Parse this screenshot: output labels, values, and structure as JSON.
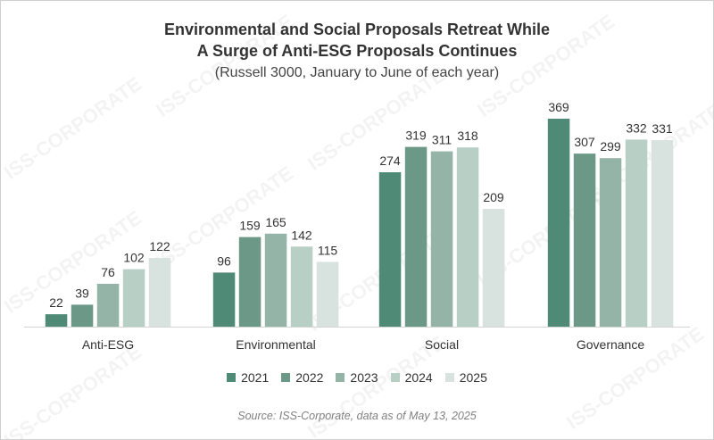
{
  "title_line1": "Environmental and Social Proposals Retreat While",
  "title_line2": "A Surge of Anti-ESG Proposals Continues",
  "subtitle": "(Russell 3000, January to June of each year)",
  "source": "Source: ISS-Corporate, data as of May 13, 2025",
  "watermark": "ISS-CORPORATE",
  "colors": [
    "#4e8a76",
    "#6c9887",
    "#93b4a6",
    "#b8cfc6",
    "#d8e2de"
  ],
  "chart_data": {
    "type": "bar",
    "title": "Environmental and Social Proposals Retreat While A Surge of Anti-ESG Proposals Continues",
    "subtitle": "(Russell 3000, January to June of each year)",
    "categories": [
      "Anti-ESG",
      "Environmental",
      "Social",
      "Governance"
    ],
    "series": [
      {
        "name": "2021",
        "values": [
          22,
          96,
          274,
          369
        ]
      },
      {
        "name": "2022",
        "values": [
          39,
          159,
          319,
          307
        ]
      },
      {
        "name": "2023",
        "values": [
          76,
          165,
          311,
          299
        ]
      },
      {
        "name": "2024",
        "values": [
          102,
          142,
          318,
          332
        ]
      },
      {
        "name": "2025",
        "values": [
          122,
          115,
          209,
          331
        ]
      }
    ],
    "xlabel": "",
    "ylabel": "",
    "ylim": [
      0,
      369
    ],
    "grid": false,
    "legend": "bottom"
  }
}
